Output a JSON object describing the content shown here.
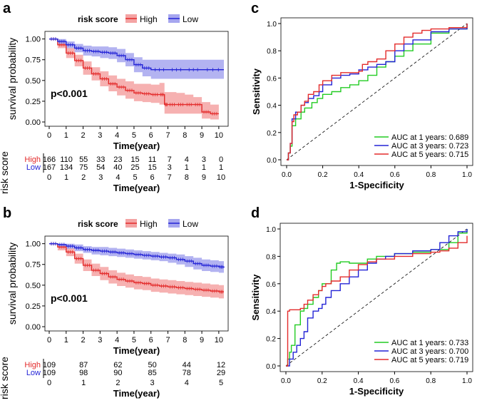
{
  "colors": {
    "high": "#e32b2b",
    "low": "#2323d6",
    "high_band": "#f4a3a3",
    "low_band": "#a6a6ef",
    "green": "#22cc22",
    "black": "#000000"
  },
  "chart_data": [
    {
      "panel": "a",
      "type": "line",
      "subtype": "kaplan-meier",
      "legend_title": "risk score",
      "legend": [
        "High",
        "Low"
      ],
      "xlabel": "Time(year)",
      "ylabel": "survival probability",
      "xlim": [
        0,
        10.3
      ],
      "ylim": [
        0,
        1.04
      ],
      "xticks": [
        "0",
        "1",
        "2",
        "3",
        "4",
        "5",
        "6",
        "7",
        "8",
        "9",
        "10"
      ],
      "yticks": [
        "0.00",
        "0.25",
        "0.50",
        "0.75",
        "1.00"
      ],
      "pvalue": "p<0.001",
      "series": [
        {
          "name": "High",
          "x": [
            0,
            0.5,
            1,
            1.5,
            2,
            2.5,
            3,
            3.5,
            4,
            4.5,
            5,
            5.5,
            6,
            6.5,
            6.8,
            7,
            7.5,
            8,
            8.5,
            9,
            9.5,
            10
          ],
          "y": [
            1,
            0.93,
            0.83,
            0.74,
            0.65,
            0.58,
            0.52,
            0.46,
            0.42,
            0.38,
            0.35,
            0.34,
            0.33,
            0.33,
            0.21,
            0.21,
            0.21,
            0.21,
            0.21,
            0.12,
            0.1,
            0.1
          ],
          "lower": [
            1,
            0.89,
            0.77,
            0.67,
            0.57,
            0.5,
            0.43,
            0.37,
            0.32,
            0.28,
            0.25,
            0.24,
            0.23,
            0.21,
            0.1,
            0.1,
            0.1,
            0.1,
            0.1,
            0.04,
            0.03,
            0.03
          ],
          "upper": [
            1,
            0.97,
            0.89,
            0.81,
            0.73,
            0.66,
            0.61,
            0.56,
            0.52,
            0.49,
            0.46,
            0.46,
            0.45,
            0.47,
            0.36,
            0.36,
            0.35,
            0.33,
            0.3,
            0.24,
            0.21,
            0.21
          ]
        },
        {
          "name": "Low",
          "x": [
            0,
            0.5,
            1,
            1.5,
            2,
            2.5,
            3,
            3.5,
            4,
            4.5,
            5,
            5.5,
            6,
            7,
            8,
            9,
            10.3
          ],
          "y": [
            1,
            0.97,
            0.93,
            0.89,
            0.86,
            0.85,
            0.84,
            0.83,
            0.8,
            0.75,
            0.69,
            0.65,
            0.63,
            0.63,
            0.63,
            0.63,
            0.63
          ],
          "lower": [
            1,
            0.94,
            0.89,
            0.84,
            0.8,
            0.79,
            0.77,
            0.76,
            0.72,
            0.67,
            0.6,
            0.55,
            0.52,
            0.52,
            0.52,
            0.52,
            0.52
          ],
          "upper": [
            1,
            1,
            0.97,
            0.94,
            0.92,
            0.91,
            0.91,
            0.9,
            0.88,
            0.83,
            0.78,
            0.75,
            0.75,
            0.75,
            0.75,
            0.75,
            0.75
          ]
        }
      ],
      "risk_table": {
        "ylabel": "risk score",
        "xlabel": "Time(year)",
        "times": [
          "0",
          "1",
          "2",
          "3",
          "4",
          "5",
          "6",
          "7",
          "8",
          "9",
          "10"
        ],
        "rows": [
          {
            "name": "High",
            "counts": [
              "166",
              "110",
              "55",
              "33",
              "23",
              "15",
              "11",
              "7",
              "4",
              "3",
              "0"
            ]
          },
          {
            "name": "Low",
            "counts": [
              "167",
              "134",
              "75",
              "54",
              "40",
              "25",
              "15",
              "3",
              "1",
              "1",
              "1"
            ]
          }
        ]
      }
    },
    {
      "panel": "b",
      "type": "line",
      "subtype": "kaplan-meier",
      "legend_title": "risk score",
      "legend": [
        "High",
        "Low"
      ],
      "xlabel": "Time(year)",
      "ylabel": "survival probability",
      "xlim": [
        0,
        10.3
      ],
      "ylim": [
        0,
        1.04
      ],
      "xticks": [
        "0",
        "1",
        "2",
        "3",
        "4",
        "5",
        "6",
        "7",
        "8",
        "9",
        "10"
      ],
      "yticks": [
        "0.00",
        "0.25",
        "0.50",
        "0.75",
        "1.00"
      ],
      "pvalue": "p<0.001",
      "series": [
        {
          "name": "High",
          "x": [
            0,
            0.5,
            1,
            1.5,
            2,
            2.5,
            3,
            3.5,
            4,
            4.5,
            5,
            5.5,
            6,
            6.5,
            7,
            7.5,
            8,
            8.5,
            9,
            9.5,
            10,
            10.3
          ],
          "y": [
            1,
            0.96,
            0.9,
            0.82,
            0.74,
            0.68,
            0.64,
            0.6,
            0.57,
            0.55,
            0.53,
            0.52,
            0.5,
            0.49,
            0.48,
            0.47,
            0.46,
            0.45,
            0.44,
            0.43,
            0.42,
            0.42
          ],
          "lower": [
            1,
            0.92,
            0.85,
            0.76,
            0.67,
            0.61,
            0.56,
            0.52,
            0.49,
            0.47,
            0.45,
            0.44,
            0.42,
            0.41,
            0.4,
            0.39,
            0.38,
            0.37,
            0.36,
            0.35,
            0.34,
            0.34
          ],
          "upper": [
            1,
            0.99,
            0.95,
            0.88,
            0.81,
            0.76,
            0.72,
            0.68,
            0.65,
            0.63,
            0.61,
            0.6,
            0.58,
            0.57,
            0.56,
            0.55,
            0.54,
            0.53,
            0.52,
            0.51,
            0.5,
            0.5
          ]
        },
        {
          "name": "Low",
          "x": [
            0,
            0.5,
            1,
            1.5,
            2,
            2.5,
            3,
            3.5,
            4,
            4.5,
            5,
            5.5,
            6,
            6.5,
            7,
            7.5,
            8,
            8.5,
            9,
            9.5,
            10,
            10.3
          ],
          "y": [
            1,
            0.99,
            0.97,
            0.95,
            0.93,
            0.92,
            0.91,
            0.9,
            0.89,
            0.88,
            0.87,
            0.86,
            0.85,
            0.84,
            0.83,
            0.81,
            0.79,
            0.76,
            0.74,
            0.73,
            0.72,
            0.71
          ],
          "lower": [
            1,
            0.97,
            0.94,
            0.91,
            0.89,
            0.87,
            0.86,
            0.85,
            0.84,
            0.83,
            0.82,
            0.81,
            0.8,
            0.79,
            0.77,
            0.75,
            0.72,
            0.69,
            0.67,
            0.66,
            0.65,
            0.64
          ],
          "upper": [
            1,
            1,
            1,
            0.99,
            0.97,
            0.96,
            0.96,
            0.95,
            0.94,
            0.93,
            0.92,
            0.91,
            0.9,
            0.89,
            0.88,
            0.87,
            0.85,
            0.83,
            0.81,
            0.8,
            0.79,
            0.79
          ]
        }
      ],
      "risk_table": {
        "ylabel": "risk score",
        "xlabel": "Time(year)",
        "times": [
          "0",
          "1",
          "2",
          "3",
          "4",
          "5"
        ],
        "rows": [
          {
            "name": "High",
            "counts": [
              "109",
              "87",
              "62",
              "50",
              "44",
              "12"
            ]
          },
          {
            "name": "Low",
            "counts": [
              "109",
              "98",
              "90",
              "85",
              "78",
              "29"
            ]
          }
        ]
      }
    },
    {
      "panel": "c",
      "type": "line",
      "subtype": "roc",
      "xlabel": "1-Specificity",
      "ylabel": "Sensitivity",
      "xlim": [
        0,
        1
      ],
      "ylim": [
        0,
        1
      ],
      "xticks": [
        "0.0",
        "0.2",
        "0.4",
        "0.6",
        "0.8",
        "1.0"
      ],
      "yticks": [
        "0.0",
        "0.2",
        "0.4",
        "0.6",
        "0.8",
        "1.0"
      ],
      "series": [
        {
          "name": "AUC at 1 years: 0.689",
          "color": "green",
          "x": [
            0,
            0.01,
            0.02,
            0.03,
            0.05,
            0.08,
            0.1,
            0.14,
            0.17,
            0.2,
            0.25,
            0.3,
            0.35,
            0.4,
            0.45,
            0.5,
            0.55,
            0.6,
            0.65,
            0.7,
            0.8,
            0.9,
            1
          ],
          "y": [
            0,
            0.05,
            0.1,
            0.25,
            0.3,
            0.35,
            0.38,
            0.42,
            0.45,
            0.48,
            0.5,
            0.53,
            0.55,
            0.58,
            0.62,
            0.68,
            0.72,
            0.76,
            0.8,
            0.85,
            0.93,
            0.96,
            1
          ]
        },
        {
          "name": "AUC at 3 years: 0.723",
          "color": "blue",
          "x": [
            0,
            0.01,
            0.02,
            0.03,
            0.05,
            0.08,
            0.1,
            0.12,
            0.15,
            0.18,
            0.2,
            0.25,
            0.3,
            0.35,
            0.4,
            0.45,
            0.5,
            0.55,
            0.6,
            0.65,
            0.7,
            0.8,
            0.9,
            1
          ],
          "y": [
            0,
            0.05,
            0.12,
            0.3,
            0.35,
            0.4,
            0.42,
            0.45,
            0.47,
            0.5,
            0.55,
            0.6,
            0.62,
            0.63,
            0.66,
            0.68,
            0.7,
            0.72,
            0.8,
            0.85,
            0.88,
            0.94,
            0.96,
            1
          ]
        },
        {
          "name": "AUC at 5 years: 0.715",
          "color": "red",
          "x": [
            0,
            0.01,
            0.02,
            0.03,
            0.04,
            0.06,
            0.08,
            0.1,
            0.12,
            0.15,
            0.18,
            0.2,
            0.25,
            0.3,
            0.35,
            0.4,
            0.42,
            0.45,
            0.5,
            0.55,
            0.6,
            0.65,
            0.7,
            0.75,
            0.8,
            0.9,
            1
          ],
          "y": [
            0,
            0.05,
            0.12,
            0.28,
            0.33,
            0.35,
            0.4,
            0.43,
            0.48,
            0.5,
            0.55,
            0.58,
            0.62,
            0.64,
            0.64,
            0.65,
            0.7,
            0.72,
            0.74,
            0.8,
            0.85,
            0.9,
            0.93,
            0.95,
            0.96,
            0.97,
            1
          ]
        }
      ]
    },
    {
      "panel": "d",
      "type": "line",
      "subtype": "roc",
      "xlabel": "1-Specificity",
      "ylabel": "Sensitivity",
      "xlim": [
        0,
        1
      ],
      "ylim": [
        0,
        1
      ],
      "xticks": [
        "0.0",
        "0.2",
        "0.4",
        "0.6",
        "0.8",
        "1.0"
      ],
      "yticks": [
        "0.0",
        "0.2",
        "0.4",
        "0.6",
        "0.8",
        "1.0"
      ],
      "series": [
        {
          "name": "AUC at 1 years: 0.733",
          "color": "green",
          "x": [
            0,
            0.01,
            0.02,
            0.03,
            0.05,
            0.08,
            0.1,
            0.12,
            0.15,
            0.18,
            0.2,
            0.25,
            0.28,
            0.3,
            0.35,
            0.4,
            0.45,
            0.5,
            0.6,
            0.7,
            0.8,
            0.9,
            0.95,
            1
          ],
          "y": [
            0,
            0.05,
            0.1,
            0.15,
            0.3,
            0.4,
            0.42,
            0.45,
            0.5,
            0.55,
            0.6,
            0.7,
            0.75,
            0.76,
            0.75,
            0.75,
            0.78,
            0.8,
            0.82,
            0.83,
            0.85,
            0.9,
            0.97,
            1
          ]
        },
        {
          "name": "AUC at 3 years: 0.700",
          "color": "blue",
          "x": [
            0,
            0.02,
            0.04,
            0.06,
            0.08,
            0.1,
            0.12,
            0.15,
            0.18,
            0.2,
            0.22,
            0.25,
            0.3,
            0.35,
            0.4,
            0.45,
            0.5,
            0.55,
            0.6,
            0.7,
            0.8,
            0.85,
            0.9,
            0.95,
            1
          ],
          "y": [
            0,
            0.05,
            0.1,
            0.15,
            0.2,
            0.25,
            0.35,
            0.4,
            0.42,
            0.45,
            0.5,
            0.55,
            0.6,
            0.65,
            0.7,
            0.75,
            0.78,
            0.8,
            0.82,
            0.84,
            0.85,
            0.9,
            0.95,
            0.98,
            1
          ]
        },
        {
          "name": "AUC at 5 years: 0.719",
          "color": "red",
          "x": [
            0,
            0.01,
            0.02,
            0.05,
            0.08,
            0.1,
            0.12,
            0.15,
            0.18,
            0.2,
            0.22,
            0.25,
            0.3,
            0.35,
            0.4,
            0.45,
            0.5,
            0.6,
            0.7,
            0.8,
            0.85,
            0.9,
            0.95,
            1
          ],
          "y": [
            0,
            0.4,
            0.41,
            0.41,
            0.42,
            0.45,
            0.48,
            0.52,
            0.55,
            0.58,
            0.6,
            0.62,
            0.65,
            0.7,
            0.74,
            0.76,
            0.78,
            0.8,
            0.82,
            0.83,
            0.84,
            0.86,
            0.9,
            0.95
          ]
        }
      ]
    }
  ]
}
